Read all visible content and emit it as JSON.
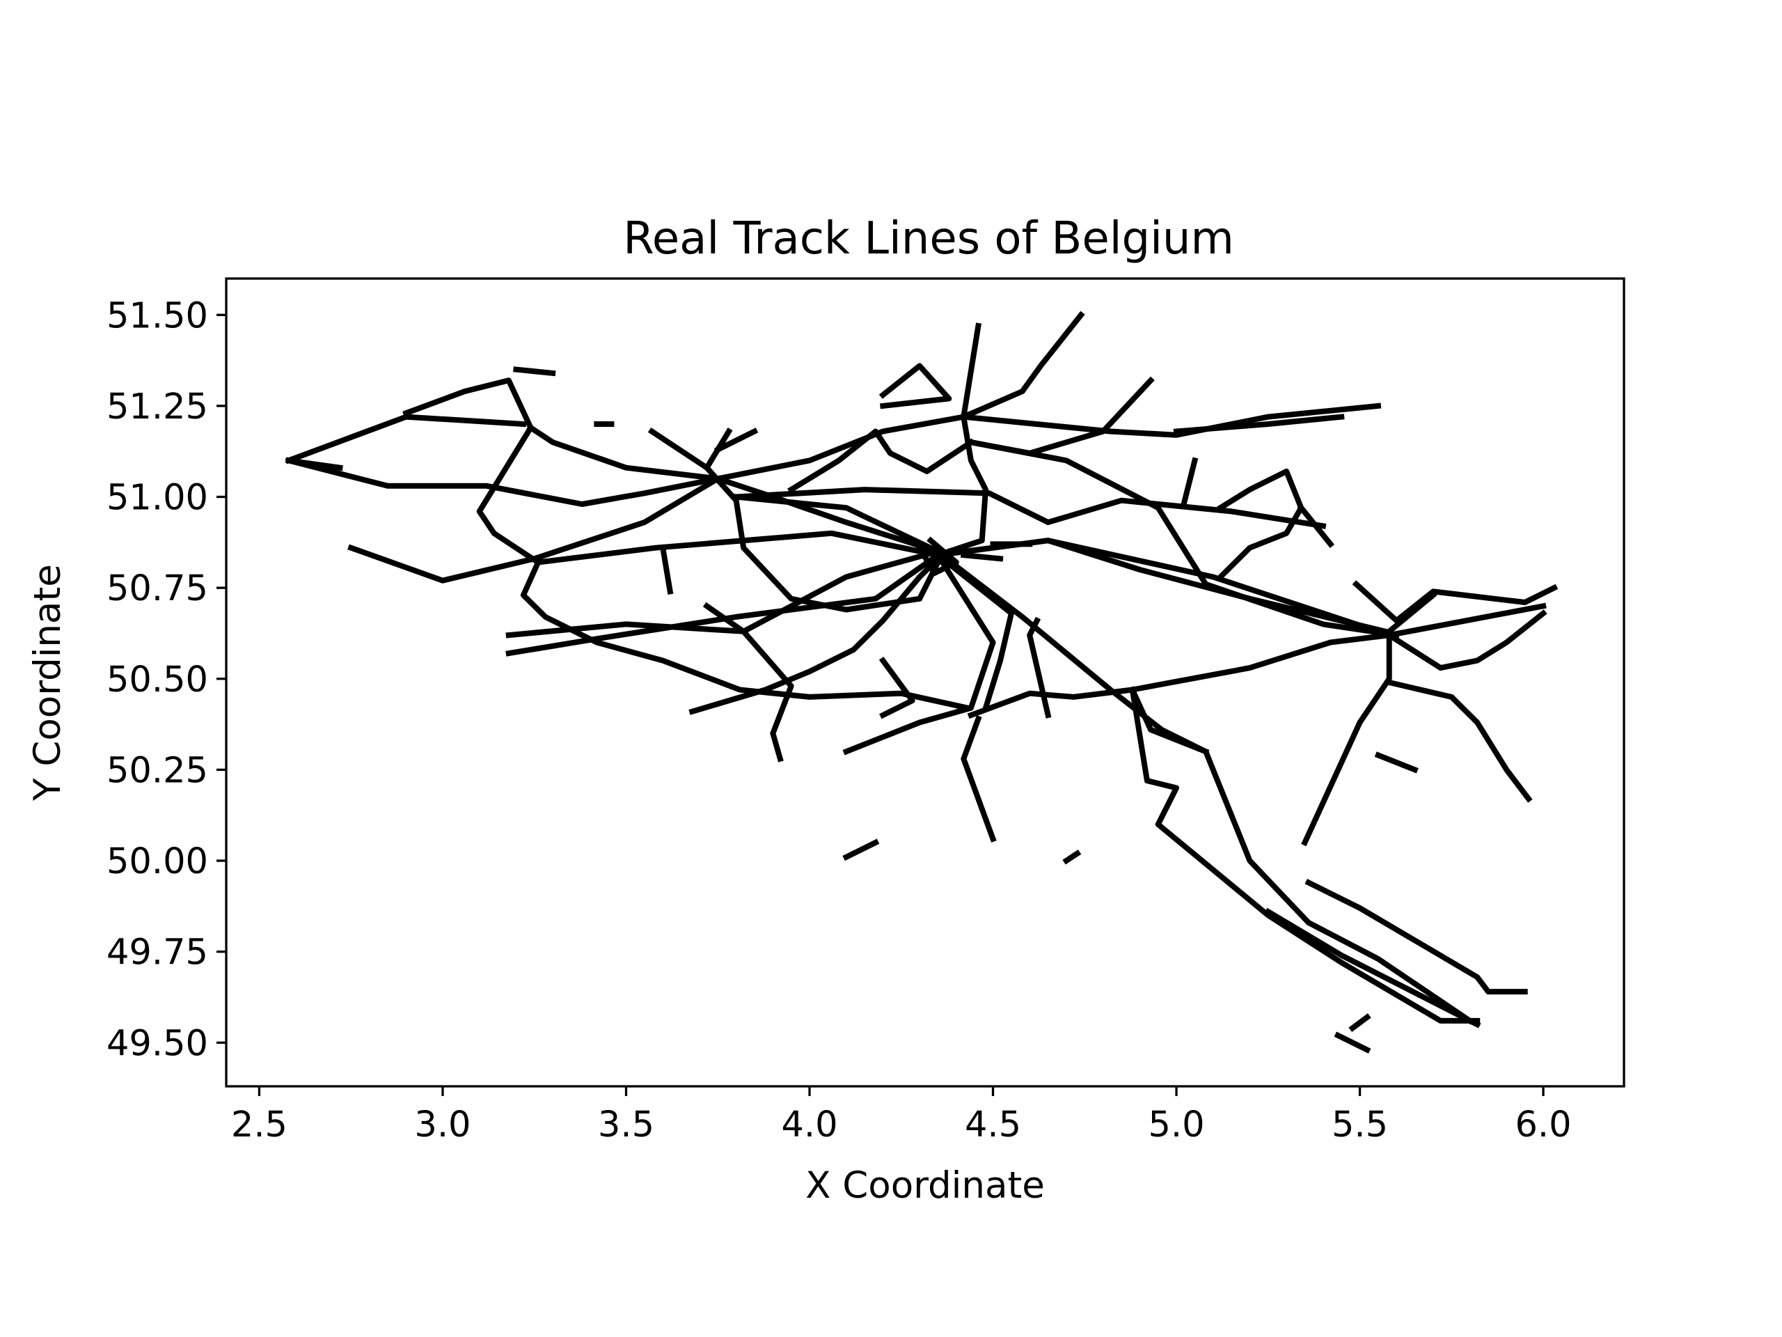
{
  "chart_data": {
    "type": "line",
    "title": "Real Track Lines of Belgium",
    "xlabel": "X Coordinate",
    "ylabel": "Y Coordinate",
    "xlim": [
      2.41,
      6.22
    ],
    "ylim": [
      49.38,
      51.6
    ],
    "x_ticks": [
      "2.5",
      "3.0",
      "3.5",
      "4.0",
      "4.5",
      "5.0",
      "5.5",
      "6.0"
    ],
    "y_ticks": [
      "49.50",
      "49.75",
      "50.00",
      "50.25",
      "50.50",
      "50.75",
      "51.00",
      "51.25",
      "51.50"
    ],
    "grid": false,
    "line_color": "#000000",
    "tracks": [
      [
        [
          2.58,
          51.1
        ],
        [
          2.9,
          51.22
        ],
        [
          3.22,
          51.2
        ]
      ],
      [
        [
          2.58,
          51.1
        ],
        [
          2.85,
          51.03
        ],
        [
          3.12,
          51.03
        ],
        [
          3.38,
          50.98
        ],
        [
          3.55,
          51.01
        ],
        [
          3.75,
          51.05
        ]
      ],
      [
        [
          2.58,
          51.1
        ],
        [
          2.72,
          51.08
        ]
      ],
      [
        [
          2.75,
          50.86
        ],
        [
          3.0,
          50.77
        ],
        [
          3.25,
          50.83
        ],
        [
          3.55,
          50.93
        ],
        [
          3.75,
          51.05
        ],
        [
          4.0,
          51.1
        ],
        [
          4.2,
          51.18
        ],
        [
          4.42,
          51.22
        ]
      ],
      [
        [
          2.9,
          51.23
        ],
        [
          3.06,
          51.29
        ],
        [
          3.18,
          51.32
        ],
        [
          3.24,
          51.19
        ],
        [
          3.1,
          50.96
        ],
        [
          3.14,
          50.9
        ],
        [
          3.26,
          50.82
        ]
      ],
      [
        [
          3.24,
          51.19
        ],
        [
          3.3,
          51.15
        ],
        [
          3.5,
          51.08
        ],
        [
          3.75,
          51.05
        ],
        [
          3.9,
          51.0
        ],
        [
          4.1,
          50.93
        ],
        [
          4.35,
          50.85
        ]
      ],
      [
        [
          3.18,
          50.62
        ],
        [
          3.5,
          50.65
        ],
        [
          3.82,
          50.63
        ],
        [
          4.1,
          50.78
        ],
        [
          4.35,
          50.85
        ]
      ],
      [
        [
          3.18,
          50.57
        ],
        [
          3.42,
          50.61
        ],
        [
          3.8,
          50.67
        ],
        [
          4.18,
          50.72
        ],
        [
          4.35,
          50.84
        ]
      ],
      [
        [
          3.26,
          50.82
        ],
        [
          3.58,
          50.86
        ],
        [
          4.06,
          50.9
        ],
        [
          4.35,
          50.84
        ]
      ],
      [
        [
          3.26,
          50.82
        ],
        [
          3.22,
          50.73
        ],
        [
          3.28,
          50.67
        ],
        [
          3.42,
          50.6
        ],
        [
          3.6,
          50.55
        ],
        [
          3.81,
          50.47
        ],
        [
          4.0,
          50.45
        ],
        [
          4.25,
          50.46
        ],
        [
          4.43,
          50.42
        ]
      ],
      [
        [
          3.68,
          50.41
        ],
        [
          3.88,
          50.47
        ],
        [
          4.0,
          50.52
        ],
        [
          4.12,
          50.58
        ],
        [
          4.2,
          50.66
        ],
        [
          4.3,
          50.78
        ],
        [
          4.36,
          50.84
        ]
      ],
      [
        [
          3.57,
          51.18
        ],
        [
          3.72,
          51.08
        ],
        [
          3.8,
          50.99
        ],
        [
          3.82,
          50.86
        ],
        [
          3.95,
          50.72
        ],
        [
          4.1,
          50.69
        ],
        [
          4.3,
          50.72
        ],
        [
          4.36,
          50.84
        ]
      ],
      [
        [
          3.72,
          51.08
        ],
        [
          3.78,
          51.18
        ]
      ],
      [
        [
          3.8,
          51.0
        ],
        [
          4.1,
          50.97
        ],
        [
          4.35,
          50.85
        ]
      ],
      [
        [
          3.8,
          51.0
        ],
        [
          4.15,
          51.02
        ],
        [
          4.49,
          51.01
        ],
        [
          4.65,
          50.93
        ],
        [
          4.85,
          50.99
        ],
        [
          5.15,
          50.96
        ],
        [
          5.4,
          50.92
        ]
      ],
      [
        [
          3.92,
          50.28
        ],
        [
          3.9,
          50.35
        ],
        [
          3.95,
          50.48
        ],
        [
          3.82,
          50.63
        ],
        [
          3.72,
          50.7
        ]
      ],
      [
        [
          4.35,
          50.84
        ],
        [
          4.55,
          50.68
        ],
        [
          4.52,
          50.55
        ],
        [
          4.48,
          50.42
        ]
      ],
      [
        [
          4.35,
          50.84
        ],
        [
          4.65,
          50.88
        ],
        [
          4.9,
          50.8
        ],
        [
          5.2,
          50.72
        ],
        [
          5.57,
          50.63
        ]
      ],
      [
        [
          4.35,
          50.84
        ],
        [
          4.65,
          50.88
        ],
        [
          5.1,
          50.78
        ],
        [
          5.4,
          50.68
        ],
        [
          5.58,
          50.62
        ]
      ],
      [
        [
          4.35,
          50.84
        ],
        [
          4.5,
          50.6
        ],
        [
          4.44,
          50.42
        ],
        [
          4.3,
          50.38
        ],
        [
          4.1,
          50.3
        ]
      ],
      [
        [
          4.36,
          50.84
        ],
        [
          4.58,
          50.67
        ],
        [
          4.82,
          50.47
        ],
        [
          4.96,
          50.36
        ],
        [
          5.08,
          50.3
        ],
        [
          5.2,
          50.0
        ],
        [
          5.36,
          49.83
        ],
        [
          5.55,
          49.73
        ],
        [
          5.8,
          49.56
        ]
      ],
      [
        [
          4.42,
          51.22
        ],
        [
          4.44,
          51.1
        ],
        [
          4.48,
          51.02
        ],
        [
          4.47,
          50.88
        ],
        [
          4.35,
          50.84
        ]
      ],
      [
        [
          4.42,
          51.22
        ],
        [
          4.46,
          51.47
        ]
      ],
      [
        [
          4.42,
          51.22
        ],
        [
          4.58,
          51.29
        ],
        [
          4.63,
          51.36
        ],
        [
          4.74,
          51.5
        ]
      ],
      [
        [
          4.42,
          51.22
        ],
        [
          4.82,
          51.18
        ],
        [
          5.0,
          51.17
        ],
        [
          5.25,
          51.22
        ],
        [
          5.55,
          51.25
        ]
      ],
      [
        [
          4.44,
          51.15
        ],
        [
          4.6,
          51.12
        ],
        [
          4.8,
          51.18
        ],
        [
          4.93,
          51.32
        ]
      ],
      [
        [
          4.44,
          51.15
        ],
        [
          4.7,
          51.1
        ],
        [
          4.95,
          50.97
        ],
        [
          5.08,
          50.76
        ],
        [
          5.4,
          50.65
        ],
        [
          5.6,
          50.62
        ]
      ],
      [
        [
          4.44,
          51.15
        ],
        [
          4.32,
          51.07
        ],
        [
          4.22,
          51.12
        ],
        [
          4.18,
          51.18
        ],
        [
          4.08,
          51.1
        ],
        [
          3.95,
          51.02
        ]
      ],
      [
        [
          4.44,
          50.4
        ],
        [
          4.6,
          50.46
        ],
        [
          4.72,
          50.45
        ],
        [
          4.88,
          50.47
        ],
        [
          5.2,
          50.53
        ],
        [
          5.42,
          50.6
        ],
        [
          5.58,
          50.62
        ],
        [
          6.0,
          50.7
        ]
      ],
      [
        [
          4.88,
          50.47
        ],
        [
          4.92,
          50.22
        ],
        [
          5.0,
          50.2
        ],
        [
          4.95,
          50.1
        ],
        [
          5.25,
          49.85
        ],
        [
          5.45,
          49.72
        ],
        [
          5.72,
          49.56
        ],
        [
          5.82,
          49.56
        ]
      ],
      [
        [
          4.88,
          50.47
        ],
        [
          4.93,
          50.36
        ],
        [
          5.08,
          50.3
        ]
      ],
      [
        [
          5.35,
          50.05
        ],
        [
          5.5,
          50.38
        ],
        [
          5.58,
          50.5
        ],
        [
          5.58,
          50.63
        ],
        [
          5.7,
          50.73
        ]
      ],
      [
        [
          5.58,
          50.49
        ],
        [
          5.75,
          50.45
        ],
        [
          5.82,
          50.38
        ],
        [
          5.9,
          50.25
        ],
        [
          5.96,
          50.17
        ]
      ],
      [
        [
          5.58,
          50.62
        ],
        [
          5.72,
          50.53
        ],
        [
          5.82,
          50.55
        ],
        [
          5.9,
          50.6
        ],
        [
          6.0,
          50.68
        ]
      ],
      [
        [
          5.49,
          50.76
        ],
        [
          5.6,
          50.66
        ],
        [
          5.7,
          50.74
        ],
        [
          5.95,
          50.71
        ],
        [
          6.03,
          50.75
        ]
      ],
      [
        [
          5.12,
          50.97
        ],
        [
          5.2,
          51.02
        ],
        [
          5.3,
          51.07
        ],
        [
          5.34,
          50.97
        ],
        [
          5.3,
          50.9
        ],
        [
          5.2,
          50.86
        ],
        [
          5.12,
          50.78
        ]
      ],
      [
        [
          5.0,
          51.18
        ],
        [
          5.25,
          51.2
        ],
        [
          5.45,
          51.22
        ]
      ],
      [
        [
          5.34,
          50.97
        ],
        [
          5.42,
          50.87
        ]
      ],
      [
        [
          5.36,
          49.94
        ],
        [
          5.5,
          49.87
        ],
        [
          5.82,
          49.68
        ],
        [
          5.85,
          49.64
        ],
        [
          5.95,
          49.64
        ]
      ],
      [
        [
          5.25,
          49.86
        ],
        [
          5.45,
          49.74
        ],
        [
          5.82,
          49.55
        ]
      ],
      [
        [
          5.55,
          50.29
        ],
        [
          5.65,
          50.25
        ]
      ],
      [
        [
          4.1,
          50.01
        ],
        [
          4.18,
          50.05
        ]
      ],
      [
        [
          4.7,
          50.0
        ],
        [
          4.73,
          50.02
        ]
      ],
      [
        [
          5.44,
          49.52
        ],
        [
          5.52,
          49.48
        ]
      ],
      [
        [
          5.48,
          49.54
        ],
        [
          5.52,
          49.57
        ]
      ],
      [
        [
          3.42,
          51.2
        ],
        [
          3.46,
          51.2
        ]
      ],
      [
        [
          3.62,
          50.74
        ],
        [
          3.6,
          50.86
        ]
      ],
      [
        [
          5.05,
          51.1
        ],
        [
          5.02,
          50.98
        ]
      ],
      [
        [
          4.2,
          50.55
        ],
        [
          4.28,
          50.44
        ],
        [
          4.2,
          50.4
        ]
      ],
      [
        [
          4.62,
          50.66
        ],
        [
          4.6,
          50.62
        ],
        [
          4.65,
          50.4
        ]
      ],
      [
        [
          4.46,
          50.39
        ],
        [
          4.42,
          50.28
        ],
        [
          4.5,
          50.06
        ]
      ],
      [
        [
          3.2,
          51.35
        ],
        [
          3.3,
          51.34
        ]
      ],
      [
        [
          4.2,
          51.28
        ],
        [
          4.3,
          51.36
        ],
        [
          4.38,
          51.27
        ],
        [
          4.2,
          51.25
        ]
      ],
      [
        [
          3.75,
          51.13
        ],
        [
          3.85,
          51.18
        ]
      ],
      [
        [
          4.33,
          50.88
        ],
        [
          4.4,
          50.82
        ],
        [
          4.34,
          50.79
        ],
        [
          4.3,
          50.86
        ]
      ],
      [
        [
          4.42,
          50.84
        ],
        [
          4.52,
          50.83
        ]
      ],
      [
        [
          4.5,
          50.87
        ],
        [
          4.6,
          50.87
        ]
      ]
    ]
  }
}
